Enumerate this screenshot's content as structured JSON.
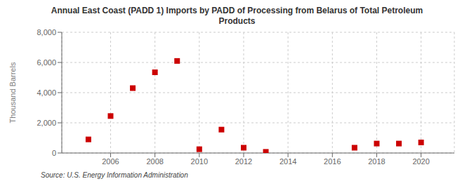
{
  "chart_data": {
    "type": "scatter",
    "title": "Annual East Coast (PADD 1) Imports by PADD of Processing from Belarus of Total Petroleum\nProducts",
    "y_label": "Thousand Barrels",
    "annotations": [
      "Source: U.S. Energy Information Administration"
    ],
    "x": [
      2005,
      2006,
      2007,
      2008,
      2009,
      2010,
      2011,
      2012,
      2013,
      2017,
      2018,
      2019,
      2020
    ],
    "values": [
      900,
      2450,
      4300,
      5350,
      6100,
      250,
      1550,
      350,
      75,
      350,
      625,
      625,
      700
    ],
    "color": "#cc0000",
    "marker": "square",
    "xlim": [
      2003.8,
      2021.5
    ],
    "xticks": [
      2006,
      2008,
      2010,
      2012,
      2014,
      2016,
      2018,
      2020
    ],
    "ylim": [
      0,
      8000
    ],
    "yticks": [
      0,
      {
        "value": 2000,
        "label": "2,000"
      },
      {
        "value": 4000,
        "label": "4,000"
      },
      {
        "value": 6000,
        "label": "6,000"
      },
      {
        "value": 8000,
        "label": "8,000"
      }
    ],
    "grid": true
  }
}
